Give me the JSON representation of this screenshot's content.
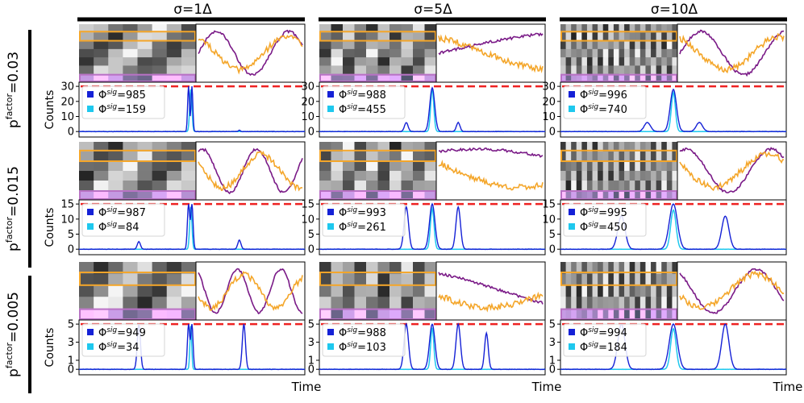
{
  "columns": [
    {
      "label": "σ=1Δ"
    },
    {
      "label": "σ=5Δ"
    },
    {
      "label": "σ=10Δ"
    }
  ],
  "rows": [
    {
      "label_base": "p",
      "label_sup": "factor",
      "label_value": "=0.03"
    },
    {
      "label_base": "p",
      "label_sup": "factor",
      "label_value": "=0.015"
    },
    {
      "label_base": "p",
      "label_sup": "factor",
      "label_value": "=0.005"
    }
  ],
  "ylabel": "Counts",
  "xlabel": "Time",
  "legend": {
    "phi": "Φ",
    "sup": "sig"
  },
  "colors": {
    "series_total": "#1521d6",
    "series_filtered": "#1ec8ee",
    "threshold": "#ee2222",
    "trace_purple": "#7a1a87",
    "trace_orange": "#f4a62a",
    "band_orange": "#f4a62a",
    "band_purple": "#b872c4"
  },
  "chart_data": [
    {
      "type": "line",
      "row": 0,
      "col": 0,
      "ylim": [
        0,
        30
      ],
      "yticks": [
        0,
        10,
        20,
        30
      ],
      "threshold": 30,
      "series": [
        {
          "legend_value": "=985",
          "peaks": [
            {
              "x": 0.485,
              "height": 30,
              "width": 0.004
            },
            {
              "x": 0.5,
              "height": 30,
              "width": 0.004
            },
            {
              "x": 0.71,
              "height": 1,
              "width": 0.004
            }
          ]
        },
        {
          "legend_value": "=159",
          "peaks": [
            {
              "x": 0.495,
              "height": 28,
              "width": 0.005
            }
          ]
        }
      ]
    },
    {
      "type": "line",
      "row": 0,
      "col": 1,
      "ylim": [
        0,
        30
      ],
      "yticks": [
        0,
        10,
        20,
        30
      ],
      "threshold": 30,
      "series": [
        {
          "legend_value": "=988",
          "peaks": [
            {
              "x": 0.385,
              "height": 6,
              "width": 0.008
            },
            {
              "x": 0.5,
              "height": 29,
              "width": 0.011
            },
            {
              "x": 0.615,
              "height": 6,
              "width": 0.008
            }
          ]
        },
        {
          "legend_value": "=455",
          "peaks": [
            {
              "x": 0.5,
              "height": 28,
              "width": 0.007
            }
          ]
        }
      ]
    },
    {
      "type": "line",
      "row": 0,
      "col": 2,
      "ylim": [
        0,
        30
      ],
      "yticks": [
        0,
        10,
        20,
        30
      ],
      "threshold": 30,
      "series": [
        {
          "legend_value": "=996",
          "peaks": [
            {
              "x": 0.385,
              "height": 6,
              "width": 0.014
            },
            {
              "x": 0.5,
              "height": 28,
              "width": 0.014
            },
            {
              "x": 0.615,
              "height": 6,
              "width": 0.014
            }
          ]
        },
        {
          "legend_value": "=740",
          "peaks": [
            {
              "x": 0.5,
              "height": 26,
              "width": 0.009
            }
          ]
        }
      ]
    },
    {
      "type": "line",
      "row": 1,
      "col": 0,
      "ylim": [
        0,
        15
      ],
      "yticks": [
        0,
        5,
        10,
        15
      ],
      "threshold": 15,
      "series": [
        {
          "legend_value": "=987",
          "peaks": [
            {
              "x": 0.265,
              "height": 2.5,
              "width": 0.007
            },
            {
              "x": 0.485,
              "height": 15,
              "width": 0.005
            },
            {
              "x": 0.5,
              "height": 15,
              "width": 0.005
            },
            {
              "x": 0.71,
              "height": 3,
              "width": 0.007
            }
          ]
        },
        {
          "legend_value": "=84",
          "peaks": [
            {
              "x": 0.495,
              "height": 14,
              "width": 0.005
            }
          ]
        }
      ]
    },
    {
      "type": "line",
      "row": 1,
      "col": 1,
      "ylim": [
        0,
        15
      ],
      "yticks": [
        0,
        5,
        10,
        15
      ],
      "threshold": 15,
      "series": [
        {
          "legend_value": "=993",
          "peaks": [
            {
              "x": 0.385,
              "height": 14,
              "width": 0.01
            },
            {
              "x": 0.5,
              "height": 15,
              "width": 0.012
            },
            {
              "x": 0.615,
              "height": 14,
              "width": 0.01
            }
          ]
        },
        {
          "legend_value": "=261",
          "peaks": [
            {
              "x": 0.5,
              "height": 13.5,
              "width": 0.008
            }
          ]
        }
      ]
    },
    {
      "type": "line",
      "row": 1,
      "col": 2,
      "ylim": [
        0,
        15
      ],
      "yticks": [
        0,
        5,
        10,
        15
      ],
      "threshold": 15,
      "series": [
        {
          "legend_value": "=995",
          "peaks": [
            {
              "x": 0.27,
              "height": 11,
              "width": 0.016
            },
            {
              "x": 0.5,
              "height": 15,
              "width": 0.018
            },
            {
              "x": 0.73,
              "height": 11,
              "width": 0.016
            }
          ]
        },
        {
          "legend_value": "=450",
          "peaks": [
            {
              "x": 0.5,
              "height": 13,
              "width": 0.012
            }
          ]
        }
      ]
    },
    {
      "type": "line",
      "row": 2,
      "col": 0,
      "ylim": [
        0,
        5
      ],
      "yticks": [
        0,
        1,
        3,
        5
      ],
      "threshold": 5,
      "series": [
        {
          "legend_value": "=949",
          "peaks": [
            {
              "x": 0.265,
              "height": 5,
              "width": 0.007
            },
            {
              "x": 0.485,
              "height": 5,
              "width": 0.005
            },
            {
              "x": 0.5,
              "height": 5,
              "width": 0.005
            },
            {
              "x": 0.73,
              "height": 5,
              "width": 0.007
            }
          ]
        },
        {
          "legend_value": "=34",
          "peaks": [
            {
              "x": 0.495,
              "height": 4.8,
              "width": 0.004
            }
          ]
        }
      ]
    },
    {
      "type": "line",
      "row": 2,
      "col": 1,
      "ylim": [
        0,
        5
      ],
      "yticks": [
        0,
        1,
        3,
        5
      ],
      "threshold": 5,
      "series": [
        {
          "legend_value": "=988",
          "peaks": [
            {
              "x": 0.385,
              "height": 5,
              "width": 0.01
            },
            {
              "x": 0.5,
              "height": 5,
              "width": 0.012
            },
            {
              "x": 0.615,
              "height": 5,
              "width": 0.01
            },
            {
              "x": 0.74,
              "height": 4,
              "width": 0.008
            }
          ]
        },
        {
          "legend_value": "=103",
          "peaks": [
            {
              "x": 0.5,
              "height": 4.6,
              "width": 0.007
            }
          ]
        }
      ]
    },
    {
      "type": "line",
      "row": 2,
      "col": 2,
      "ylim": [
        0,
        5
      ],
      "yticks": [
        0,
        1,
        3,
        5
      ],
      "threshold": 5,
      "series": [
        {
          "legend_value": "=994",
          "peaks": [
            {
              "x": 0.27,
              "height": 5,
              "width": 0.016
            },
            {
              "x": 0.5,
              "height": 5,
              "width": 0.018
            },
            {
              "x": 0.73,
              "height": 5,
              "width": 0.016
            }
          ]
        },
        {
          "legend_value": "=184",
          "peaks": [
            {
              "x": 0.5,
              "height": 4.5,
              "width": 0.012
            }
          ]
        }
      ]
    }
  ]
}
